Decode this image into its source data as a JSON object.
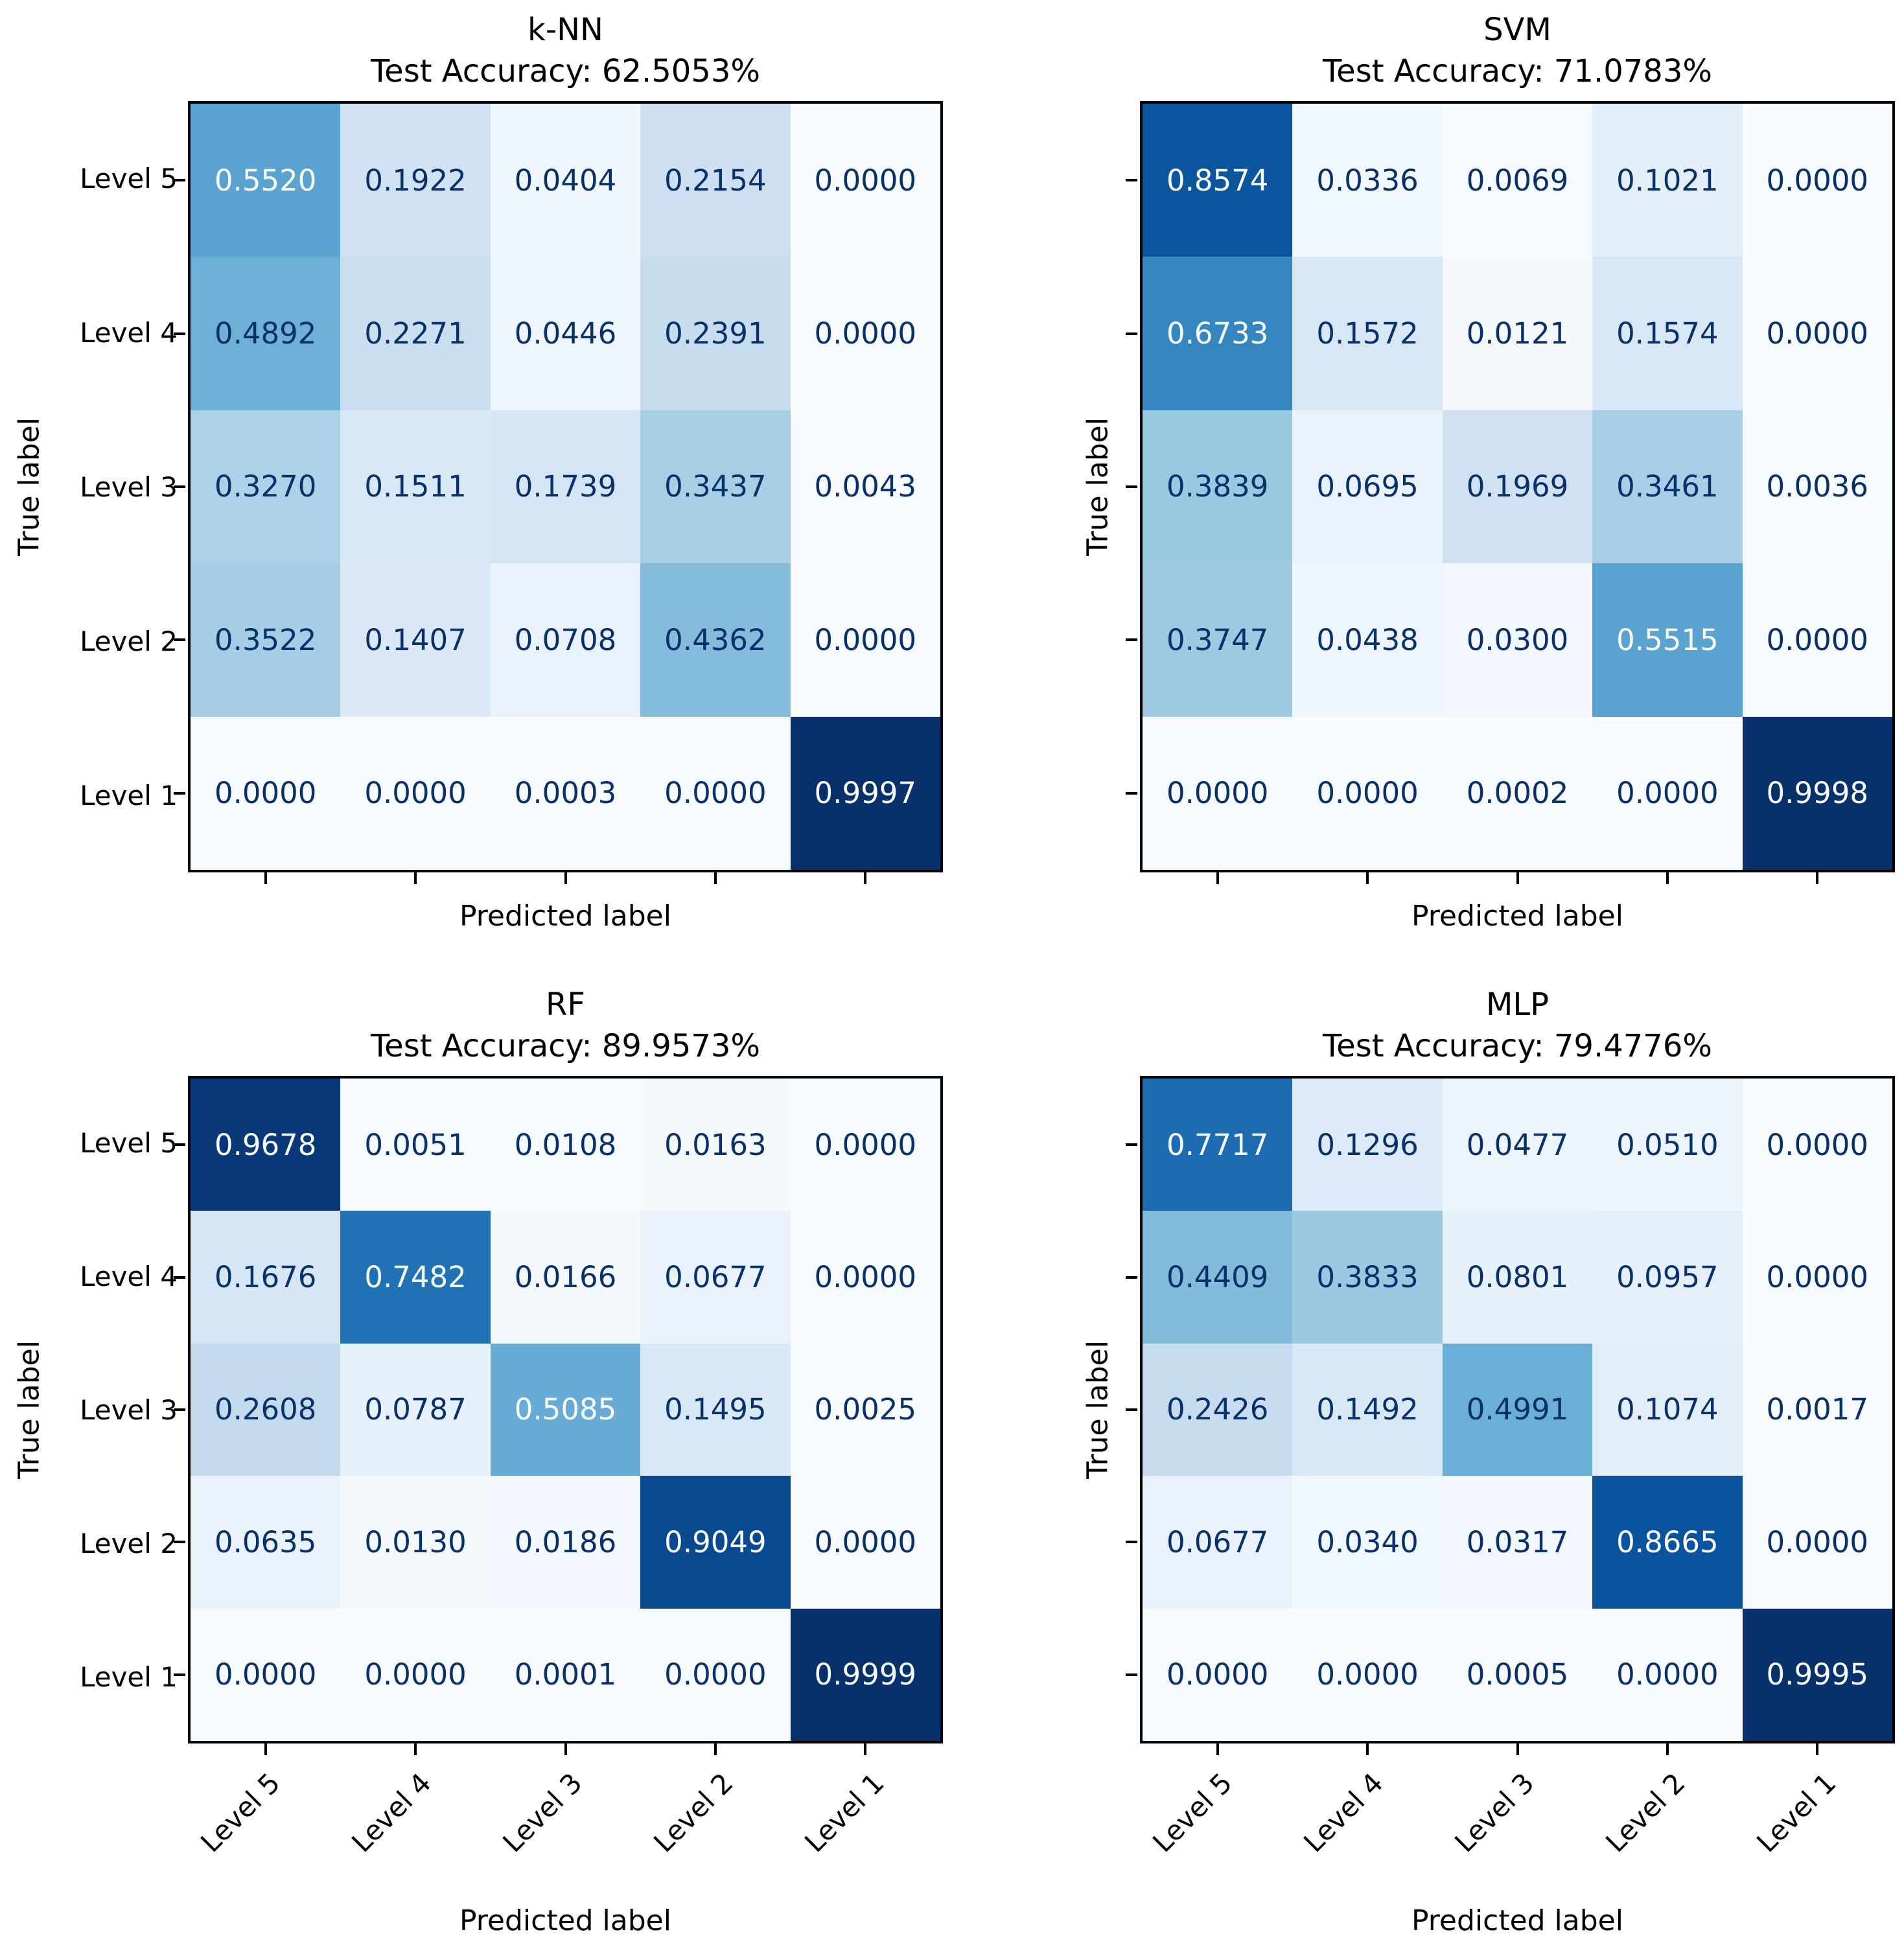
{
  "figure": {
    "background": "#ffffff",
    "colormap": "Blues",
    "axis_color": "#000000",
    "cell_text_dark": "#08306b",
    "cell_text_light": "#f7fbff"
  },
  "chart_data": [
    {
      "type": "heatmap",
      "title": "k-NN",
      "subtitle": "Test Accuracy: 62.5053%",
      "test_accuracy_percent": 62.5053,
      "xlabel": "Predicted label",
      "ylabel": "True label",
      "row_labels": [
        "Level 5",
        "Level 4",
        "Level 3",
        "Level 2",
        "Level 1"
      ],
      "col_labels": [
        "Level 5",
        "Level 4",
        "Level 3",
        "Level 2",
        "Level 1"
      ],
      "show_row_tick_labels": true,
      "show_col_tick_labels": false,
      "value_range": [
        0,
        1
      ],
      "values": [
        [
          0.552,
          0.1922,
          0.0404,
          0.2154,
          0.0
        ],
        [
          0.4892,
          0.2271,
          0.0446,
          0.2391,
          0.0
        ],
        [
          0.327,
          0.1511,
          0.1739,
          0.3437,
          0.0043
        ],
        [
          0.3522,
          0.1407,
          0.0708,
          0.4362,
          0.0
        ],
        [
          0.0,
          0.0,
          0.0003,
          0.0,
          0.9997
        ]
      ]
    },
    {
      "type": "heatmap",
      "title": "SVM",
      "subtitle": "Test Accuracy: 71.0783%",
      "test_accuracy_percent": 71.0783,
      "xlabel": "Predicted label",
      "ylabel": "True label",
      "row_labels": [
        "Level 5",
        "Level 4",
        "Level 3",
        "Level 2",
        "Level 1"
      ],
      "col_labels": [
        "Level 5",
        "Level 4",
        "Level 3",
        "Level 2",
        "Level 1"
      ],
      "show_row_tick_labels": false,
      "show_col_tick_labels": false,
      "value_range": [
        0,
        1
      ],
      "values": [
        [
          0.8574,
          0.0336,
          0.0069,
          0.1021,
          0.0
        ],
        [
          0.6733,
          0.1572,
          0.0121,
          0.1574,
          0.0
        ],
        [
          0.3839,
          0.0695,
          0.1969,
          0.3461,
          0.0036
        ],
        [
          0.3747,
          0.0438,
          0.03,
          0.5515,
          0.0
        ],
        [
          0.0,
          0.0,
          0.0002,
          0.0,
          0.9998
        ]
      ]
    },
    {
      "type": "heatmap",
      "title": "RF",
      "subtitle": "Test Accuracy: 89.9573%",
      "test_accuracy_percent": 89.9573,
      "xlabel": "Predicted label",
      "ylabel": "True label",
      "row_labels": [
        "Level 5",
        "Level 4",
        "Level 3",
        "Level 2",
        "Level 1"
      ],
      "col_labels": [
        "Level 5",
        "Level 4",
        "Level 3",
        "Level 2",
        "Level 1"
      ],
      "show_row_tick_labels": true,
      "show_col_tick_labels": true,
      "value_range": [
        0,
        1
      ],
      "values": [
        [
          0.9678,
          0.0051,
          0.0108,
          0.0163,
          0.0
        ],
        [
          0.1676,
          0.7482,
          0.0166,
          0.0677,
          0.0
        ],
        [
          0.2608,
          0.0787,
          0.5085,
          0.1495,
          0.0025
        ],
        [
          0.0635,
          0.013,
          0.0186,
          0.9049,
          0.0
        ],
        [
          0.0,
          0.0,
          0.0001,
          0.0,
          0.9999
        ]
      ]
    },
    {
      "type": "heatmap",
      "title": "MLP",
      "subtitle": "Test Accuracy: 79.4776%",
      "test_accuracy_percent": 79.4776,
      "xlabel": "Predicted label",
      "ylabel": "True label",
      "row_labels": [
        "Level 5",
        "Level 4",
        "Level 3",
        "Level 2",
        "Level 1"
      ],
      "col_labels": [
        "Level 5",
        "Level 4",
        "Level 3",
        "Level 2",
        "Level 1"
      ],
      "show_row_tick_labels": false,
      "show_col_tick_labels": true,
      "value_range": [
        0,
        1
      ],
      "values": [
        [
          0.7717,
          0.1296,
          0.0477,
          0.051,
          0.0
        ],
        [
          0.4409,
          0.3833,
          0.0801,
          0.0957,
          0.0
        ],
        [
          0.2426,
          0.1492,
          0.4991,
          0.1074,
          0.0017
        ],
        [
          0.0677,
          0.034,
          0.0317,
          0.8665,
          0.0
        ],
        [
          0.0,
          0.0,
          0.0005,
          0.0,
          0.9995
        ]
      ]
    }
  ]
}
